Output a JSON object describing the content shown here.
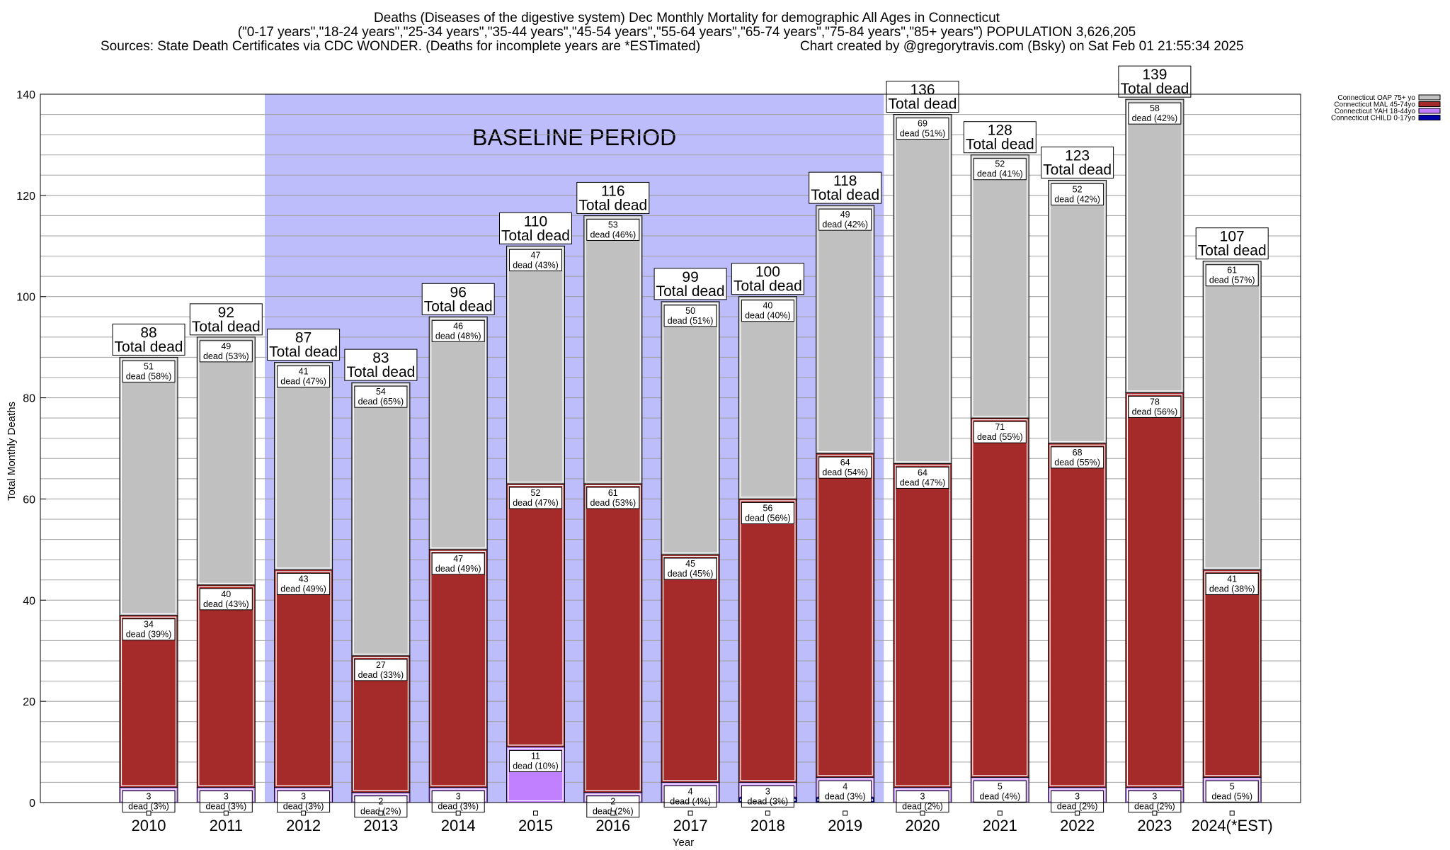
{
  "chart_data": {
    "type": "bar",
    "stacked": true,
    "title_lines": [
      "Deaths (Diseases of the digestive system) Dec Monthly Mortality for demographic All Ages in Connecticut",
      "(\"0-17 years\",\"18-24 years\",\"25-34 years\",\"35-44 years\",\"45-54 years\",\"55-64 years\",\"65-74 years\",\"75-84 years\",\"85+ years\") POPULATION 3,626,205",
      "Sources: State Death Certificates via CDC WONDER. (Deaths for incomplete years are *ESTimated)",
      "Chart created by @gregorytravis.com (Bsky) on Sat Feb 01 21:55:34 2025"
    ],
    "xlabel": "Year",
    "ylabel": "Total Monthly Deaths",
    "ylim": [
      0,
      140
    ],
    "yticks": [
      0,
      20,
      40,
      60,
      80,
      100,
      120,
      140
    ],
    "grid": true,
    "legend_position": "top-right",
    "baseline_period": {
      "label": "BASELINE PERIOD",
      "start": "2012",
      "end": "2019"
    },
    "categories": [
      "2010",
      "2011",
      "2012",
      "2013",
      "2014",
      "2015",
      "2016",
      "2017",
      "2018",
      "2019",
      "2020",
      "2021",
      "2022",
      "2023",
      "2024(*EST)"
    ],
    "series": [
      {
        "name": "Connecticut CHILD 0-17yo",
        "color": "#0000aa",
        "values": [
          0,
          0,
          0,
          0,
          0,
          0,
          0,
          0,
          1,
          1,
          0,
          0,
          0,
          0,
          0
        ]
      },
      {
        "name": "Connecticut YAH 18-44yo",
        "color": "#c080ff",
        "values": [
          3,
          3,
          3,
          2,
          3,
          11,
          2,
          4,
          3,
          4,
          3,
          5,
          3,
          3,
          5
        ]
      },
      {
        "name": "Connecticut MAL 45-74yo",
        "color": "#a52a2a",
        "values": [
          34,
          40,
          43,
          27,
          47,
          52,
          61,
          45,
          56,
          64,
          64,
          71,
          68,
          78,
          41
        ]
      },
      {
        "name": "Connecticut OAP 75+ yo",
        "color": "#c0c0c0",
        "values": [
          51,
          49,
          41,
          54,
          46,
          47,
          53,
          50,
          40,
          49,
          69,
          52,
          52,
          58,
          61
        ]
      }
    ],
    "totals": [
      88,
      92,
      87,
      83,
      96,
      110,
      116,
      99,
      100,
      118,
      136,
      128,
      123,
      139,
      107
    ],
    "total_label_suffix": "Total dead",
    "segment_labels": {
      "Connecticut YAH 18-44yo": [
        "dead (3%)",
        "dead (3%)",
        "dead (3%)",
        "dead (2%)",
        "dead (3%)",
        "dead (10%)",
        "dead (2%)",
        "dead (4%)",
        "dead (3%)",
        "dead (3%)",
        "dead (2%)",
        "dead (4%)",
        "dead (2%)",
        "dead (2%)",
        "dead (5%)"
      ],
      "Connecticut MAL 45-74yo": [
        "dead (39%)",
        "dead (43%)",
        "dead (49%)",
        "dead (33%)",
        "dead (49%)",
        "dead (47%)",
        "dead (53%)",
        "dead (45%)",
        "dead (56%)",
        "dead (54%)",
        "dead (47%)",
        "dead (55%)",
        "dead (55%)",
        "dead (56%)",
        "dead (38%)"
      ],
      "Connecticut OAP 75+ yo": [
        "dead (58%)",
        "dead (53%)",
        "dead (47%)",
        "dead (65%)",
        "dead (48%)",
        "dead (43%)",
        "dead (46%)",
        "dead (51%)",
        "dead (40%)",
        "dead (42%)",
        "dead (51%)",
        "dead (41%)",
        "dead (42%)",
        "dead (42%)",
        "dead (57%)"
      ]
    },
    "legend_order": [
      "Connecticut OAP 75+ yo",
      "Connecticut MAL 45-74yo",
      "Connecticut YAH 18-44yo",
      "Connecticut CHILD 0-17yo"
    ]
  }
}
